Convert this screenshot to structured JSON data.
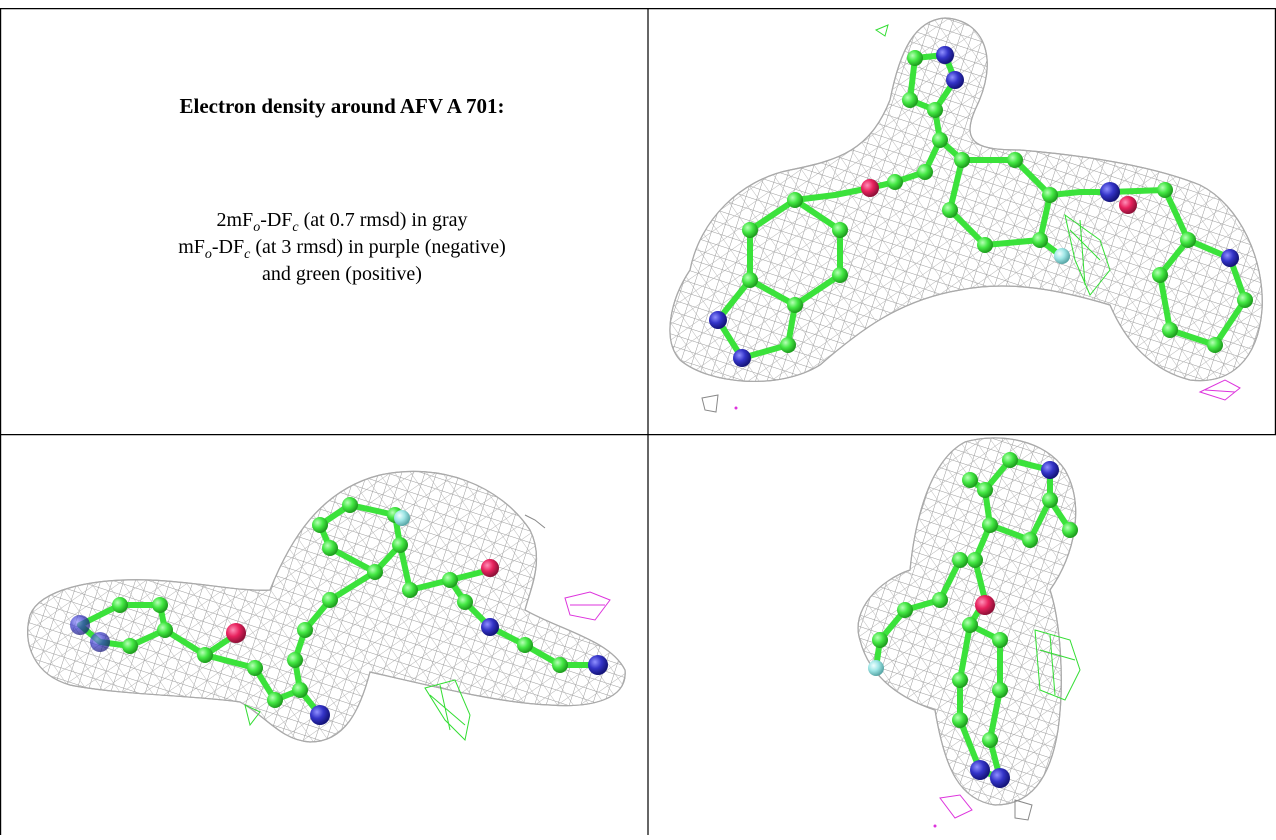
{
  "figure": {
    "title": "Electron density around AFV A 701:",
    "lines": [
      [
        "2mF",
        "o",
        "-DF",
        "c",
        " (at 0.7 rmsd) in gray"
      ],
      [
        "mF",
        "o",
        "-DF",
        "c",
        " (at 3 rmsd) in purple (negative)"
      ],
      [
        "and green (positive)"
      ]
    ]
  }
}
